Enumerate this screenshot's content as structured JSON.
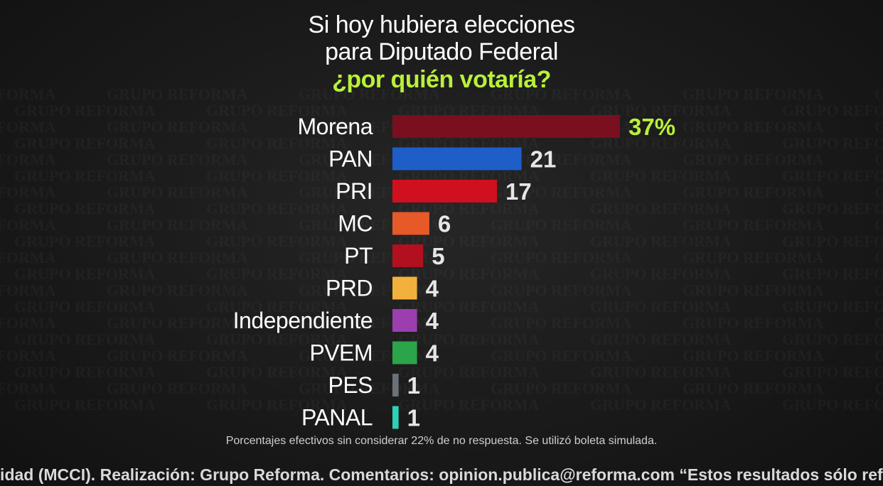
{
  "header": {
    "title_line1": "Si hoy hubiera elecciones",
    "title_line2": "para Diputado Federal",
    "question": "¿por quién votaría?"
  },
  "watermark_text": "GRUPO REFORMA",
  "chart_data": {
    "type": "bar",
    "orientation": "horizontal",
    "categories": [
      "Morena",
      "PAN",
      "PRI",
      "MC",
      "PT",
      "PRD",
      "Independiente",
      "PVEM",
      "PES",
      "PANAL"
    ],
    "values": [
      37,
      21,
      17,
      6,
      5,
      4,
      4,
      4,
      1,
      1
    ],
    "value_labels": [
      "37%",
      "21",
      "17",
      "6",
      "5",
      "4",
      "4",
      "4",
      "1",
      "1"
    ],
    "colors": [
      "#7a0f1f",
      "#1d5ec9",
      "#d0101e",
      "#e8592a",
      "#b3101f",
      "#f2b13c",
      "#9b3fb0",
      "#2aa54a",
      "#6b7178",
      "#2ed1b8"
    ],
    "highlight_label_color": "#b8f03a",
    "label_color": "#ffffff",
    "xlim": [
      0,
      37
    ],
    "grid": false,
    "legend": "none"
  },
  "footnote": "Porcentajes efectivos sin considerar 22% de no respuesta. Se utilizó boleta simulada.",
  "ticker": "nidad (MCCI). Realización: Grupo Reforma. Comentarios: opinion.publica@reforma.com “Estos resultados sólo reflejan las opiniones"
}
